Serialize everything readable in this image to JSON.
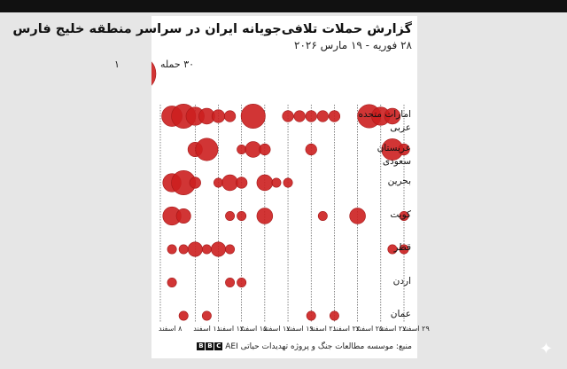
{
  "chart_data": {
    "type": "scatter",
    "title": "گزارش حملات تلافی‌جویانه ایران در سراسر منطقه خلیج فارس",
    "subtitle": "۲۸ فوریه - ۱۹ مارس ۲۰۲۶",
    "legend": {
      "size_min_label": "۱",
      "size_max_label": "۳۰ حمله",
      "size_min_value": 1,
      "size_max_value": 30
    },
    "x_ticks": [
      {
        "day": 8,
        "label": "۸ اسفند"
      },
      {
        "day": 11,
        "label": "۱۱ اسفند"
      },
      {
        "day": 13,
        "label": "۱۳ اسفند"
      },
      {
        "day": 15,
        "label": "۱۵ اسفند"
      },
      {
        "day": 17,
        "label": "۱۷ اسفند"
      },
      {
        "day": 19,
        "label": "۱۹ اسفند"
      },
      {
        "day": 21,
        "label": "۲۱ اسفند"
      },
      {
        "day": 23,
        "label": "۲۳ اسفند"
      },
      {
        "day": 25,
        "label": "۲۵ اسفند"
      },
      {
        "day": 27,
        "label": "۲۷ اسفند"
      },
      {
        "day": 29,
        "label": "۲۹ اسفند"
      }
    ],
    "rows": [
      {
        "label": "امارات متحده عربی",
        "points": [
          {
            "day": 9,
            "count": 10
          },
          {
            "day": 10,
            "count": 14
          },
          {
            "day": 11,
            "count": 8
          },
          {
            "day": 12,
            "count": 6
          },
          {
            "day": 13,
            "count": 4
          },
          {
            "day": 14,
            "count": 3
          },
          {
            "day": 16,
            "count": 14
          },
          {
            "day": 19,
            "count": 3
          },
          {
            "day": 20,
            "count": 3
          },
          {
            "day": 21,
            "count": 3
          },
          {
            "day": 22,
            "count": 3
          },
          {
            "day": 23,
            "count": 3
          },
          {
            "day": 26,
            "count": 13
          },
          {
            "day": 27,
            "count": 8
          },
          {
            "day": 28,
            "count": 6
          }
        ]
      },
      {
        "label": "عربستان سعودی",
        "points": [
          {
            "day": 11,
            "count": 5
          },
          {
            "day": 12,
            "count": 12
          },
          {
            "day": 15,
            "count": 2
          },
          {
            "day": 16,
            "count": 6
          },
          {
            "day": 17,
            "count": 3
          },
          {
            "day": 21,
            "count": 3
          },
          {
            "day": 28,
            "count": 11
          },
          {
            "day": 29,
            "count": 3
          }
        ]
      },
      {
        "label": "بحرین",
        "points": [
          {
            "day": 9,
            "count": 8
          },
          {
            "day": 10,
            "count": 14
          },
          {
            "day": 11,
            "count": 3
          },
          {
            "day": 13,
            "count": 2
          },
          {
            "day": 14,
            "count": 6
          },
          {
            "day": 15,
            "count": 3
          },
          {
            "day": 17,
            "count": 6
          },
          {
            "day": 18,
            "count": 2
          },
          {
            "day": 19,
            "count": 2
          }
        ]
      },
      {
        "label": "کویت",
        "points": [
          {
            "day": 9,
            "count": 8
          },
          {
            "day": 10,
            "count": 5
          },
          {
            "day": 14,
            "count": 2
          },
          {
            "day": 15,
            "count": 2
          },
          {
            "day": 17,
            "count": 6
          },
          {
            "day": 22,
            "count": 2
          },
          {
            "day": 25,
            "count": 6
          },
          {
            "day": 29,
            "count": 2
          }
        ]
      },
      {
        "label": "قطر",
        "points": [
          {
            "day": 9,
            "count": 2
          },
          {
            "day": 10,
            "count": 2
          },
          {
            "day": 11,
            "count": 5
          },
          {
            "day": 12,
            "count": 2
          },
          {
            "day": 13,
            "count": 5
          },
          {
            "day": 14,
            "count": 2
          },
          {
            "day": 28,
            "count": 2
          },
          {
            "day": 29,
            "count": 2
          }
        ]
      },
      {
        "label": "اردن",
        "points": [
          {
            "day": 9,
            "count": 2
          },
          {
            "day": 14,
            "count": 2
          },
          {
            "day": 15,
            "count": 2
          }
        ]
      },
      {
        "label": "عمان",
        "points": [
          {
            "day": 10,
            "count": 2
          },
          {
            "day": 12,
            "count": 2
          },
          {
            "day": 21,
            "count": 2
          },
          {
            "day": 23,
            "count": 2
          }
        ]
      }
    ]
  },
  "source": {
    "text": "منبع: موسسه مطالعات جنگ و پروژه تهدیدات حیاتی AEI",
    "logo_letters": [
      "B",
      "B",
      "C"
    ]
  },
  "colors": {
    "bubble_fill": "#cc1f1f",
    "bubble_stroke": "#a51818",
    "gridline": "#333333",
    "topbar": "#111111"
  }
}
